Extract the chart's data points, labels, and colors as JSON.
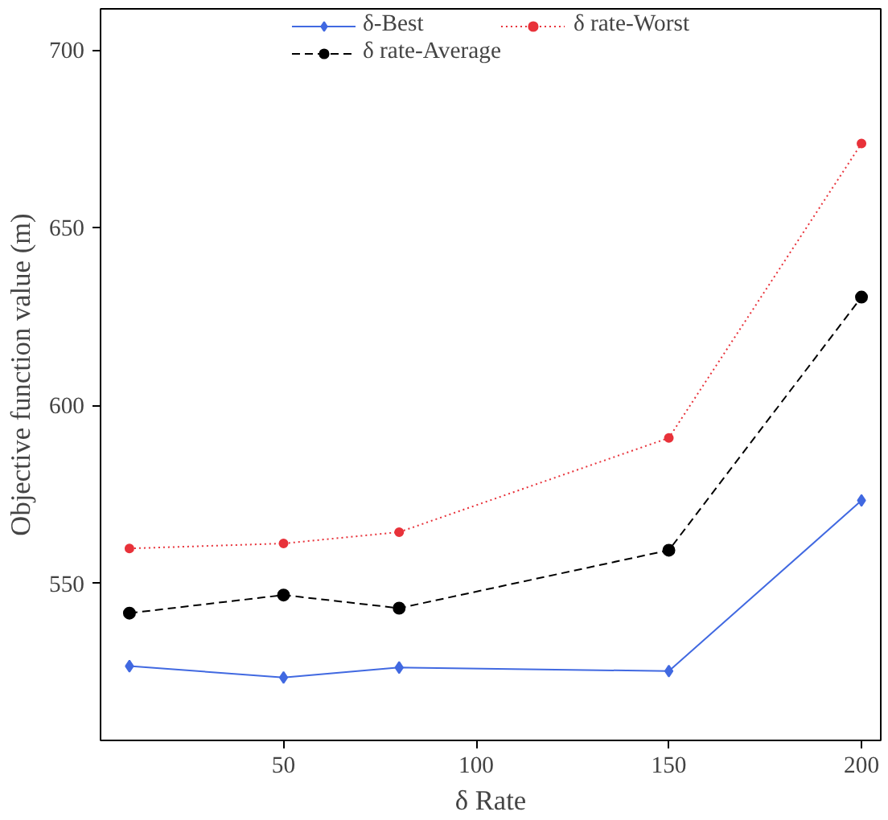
{
  "chart_data": {
    "type": "line",
    "xlabel": "δ Rate",
    "ylabel": "Objective function value (m)",
    "x": [
      10,
      50,
      80,
      150,
      200
    ],
    "series": [
      {
        "name": "δ-Best",
        "color": "#4169e1",
        "values": [
          526.7,
          523.5,
          526.3,
          525.3,
          573.3
        ],
        "marker": "diamond",
        "line_style": "solid"
      },
      {
        "name": "δ rate-Average",
        "color": "#000000",
        "values": [
          541.6,
          546.7,
          543.0,
          559.3,
          630.5
        ],
        "marker": "circle",
        "line_style": "dashed"
      },
      {
        "name": "δ rate-Worst",
        "color": "#e8323a",
        "values": [
          559.8,
          561.2,
          564.4,
          590.9,
          673.7
        ],
        "marker": "circle",
        "line_style": "dotted"
      }
    ],
    "xlim": [
      2.5,
      205
    ],
    "ylim": [
      505.8,
      711.6
    ],
    "xticks": [
      50,
      100,
      150,
      200
    ],
    "yticks": [
      550,
      600,
      650,
      700
    ],
    "grid": false,
    "legend": "top"
  }
}
